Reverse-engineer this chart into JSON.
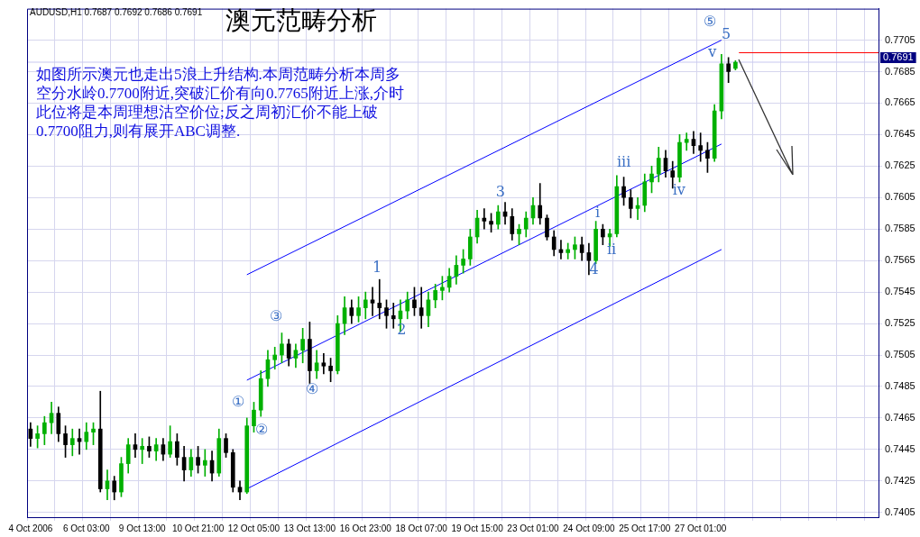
{
  "chart_data": {
    "type": "candlestick",
    "title": "澳元范畴分析",
    "subtitle": "AUDUSD,H1 0.7687 0.7692 0.7686 0.7691",
    "categories": [
      "4 Oct 2006",
      null,
      null,
      null,
      null,
      null,
      null,
      null,
      "6 Oct 03:00",
      null,
      null,
      null,
      null,
      null,
      null,
      null,
      "9 Oct 13:00",
      null,
      null,
      null,
      null,
      null,
      null,
      null,
      "10 Oct 21:00",
      null,
      null,
      null,
      null,
      null,
      null,
      null,
      "12 Oct 05:00",
      null,
      null,
      null,
      null,
      null,
      null,
      null,
      "13 Oct 13:00",
      null,
      null,
      null,
      null,
      null,
      null,
      null,
      "16 Oct 23:00",
      null,
      null,
      null,
      null,
      null,
      null,
      null,
      "18 Oct 07:00",
      null,
      null,
      null,
      null,
      null,
      null,
      null,
      "19 Oct 15:00",
      null,
      null,
      null,
      null,
      null,
      null,
      null,
      "23 Oct 01:00",
      null,
      null,
      null,
      null,
      null,
      null,
      null,
      "24 Oct 09:00",
      null,
      null,
      null,
      null,
      null,
      null,
      null,
      "25 Oct 17:00",
      null,
      null,
      null,
      null,
      null,
      null,
      null,
      "27 Oct 01:00",
      null,
      null,
      null,
      null,
      null,
      null,
      null,
      null,
      null,
      null,
      null,
      null,
      null,
      null,
      null,
      null,
      null,
      null,
      null,
      null,
      null,
      null,
      null,
      null,
      null
    ],
    "colors": [
      "#000000",
      "#00b000",
      "#00b000",
      "#00b000",
      "#000000",
      "#000000",
      "#00b000",
      "#000000",
      "#00b000",
      "#00b000",
      "#000000",
      "#00b000",
      "#000000",
      "#00b000",
      "#00b000",
      "#000000",
      "#00b000",
      "#000000",
      "#00b000",
      "#000000",
      "#00b000",
      "#000000",
      "#000000",
      "#00b000",
      "#000000",
      "#00b000",
      "#000000",
      "#00b000",
      "#000000",
      "#000000",
      "#000000",
      "#00b000",
      "#00b000",
      "#00b000",
      "#00b000",
      "#00b000",
      "#00b000",
      "#000000",
      "#00b000",
      "#00b000",
      "#000000",
      "#00b000",
      "#000000",
      "#000000",
      "#00b000",
      "#00b000",
      "#000000",
      "#00b000",
      "#00b000",
      "#000000",
      "#000000",
      "#000000",
      "#000000",
      "#00b000",
      "#00b000",
      "#000000",
      "#000000",
      "#00b000",
      "#00b000",
      "#00b000",
      "#00b000",
      "#00b000",
      "#00b000",
      "#00b000",
      "#00b000",
      "#000000",
      "#000000",
      "#00b000",
      "#000000",
      "#000000",
      "#00b000",
      "#00b000",
      "#00b000",
      "#000000",
      "#000000",
      "#000000",
      "#000000",
      "#00b000",
      "#00b000",
      "#000000",
      "#000000",
      "#00b000",
      "#000000",
      "#00b000",
      "#00b000",
      "#000000",
      "#000000",
      "#00b000",
      "#00b000",
      "#00b000",
      "#00b000",
      "#000000",
      "#000000",
      "#00b000",
      "#00b000",
      "#000000",
      "#000000",
      "#000000",
      "#00b000",
      "#00b000",
      "#000000",
      "#00b000",
      null,
      null,
      null,
      null,
      null,
      null,
      null,
      null,
      null,
      null,
      null,
      null,
      null,
      null,
      null,
      null,
      null,
      null,
      null,
      null
    ],
    "ohlc": [
      [
        0.7458,
        0.7462,
        0.7447,
        0.7452
      ],
      [
        0.7452,
        0.746,
        0.7446,
        0.7455
      ],
      [
        0.7455,
        0.7466,
        0.7448,
        0.7462
      ],
      [
        0.7462,
        0.7475,
        0.7455,
        0.7468
      ],
      [
        0.7468,
        0.7472,
        0.745,
        0.7455
      ],
      [
        0.7455,
        0.746,
        0.744,
        0.7448
      ],
      [
        0.7448,
        0.7458,
        0.7441,
        0.7452
      ],
      [
        0.7452,
        0.7458,
        0.7442,
        0.745
      ],
      [
        0.745,
        0.7462,
        0.7445,
        0.7456
      ],
      [
        0.7456,
        0.7462,
        0.7448,
        0.7458
      ],
      [
        0.7458,
        0.7482,
        0.7418,
        0.742
      ],
      [
        0.742,
        0.7432,
        0.7413,
        0.7425
      ],
      [
        0.7425,
        0.7428,
        0.7413,
        0.7418
      ],
      [
        0.7418,
        0.744,
        0.7415,
        0.7436
      ],
      [
        0.7436,
        0.7452,
        0.743,
        0.7448
      ],
      [
        0.7448,
        0.7455,
        0.744,
        0.7445
      ],
      [
        0.7445,
        0.7452,
        0.7436,
        0.7447
      ],
      [
        0.7447,
        0.7453,
        0.744,
        0.7444
      ],
      [
        0.7444,
        0.7452,
        0.7438,
        0.7448
      ],
      [
        0.7448,
        0.7452,
        0.7438,
        0.7442
      ],
      [
        0.7442,
        0.746,
        0.744,
        0.745
      ],
      [
        0.745,
        0.7455,
        0.7435,
        0.744
      ],
      [
        0.744,
        0.7447,
        0.7425,
        0.7432
      ],
      [
        0.7432,
        0.7445,
        0.7428,
        0.744
      ],
      [
        0.744,
        0.7447,
        0.743,
        0.7435
      ],
      [
        0.7435,
        0.7445,
        0.7428,
        0.7438
      ],
      [
        0.7438,
        0.7444,
        0.7425,
        0.743
      ],
      [
        0.743,
        0.7458,
        0.7428,
        0.7452
      ],
      [
        0.7452,
        0.7455,
        0.744,
        0.7443
      ],
      [
        0.7443,
        0.7445,
        0.7418,
        0.7421
      ],
      [
        0.7421,
        0.7425,
        0.7413,
        0.7418
      ],
      [
        0.7418,
        0.7465,
        0.7417,
        0.746
      ],
      [
        0.746,
        0.7475,
        0.7456,
        0.747
      ],
      [
        0.747,
        0.7495,
        0.7466,
        0.749
      ],
      [
        0.749,
        0.7508,
        0.7485,
        0.7502
      ],
      [
        0.7502,
        0.751,
        0.7496,
        0.7505
      ],
      [
        0.7505,
        0.7519,
        0.75,
        0.7512
      ],
      [
        0.7512,
        0.7515,
        0.7498,
        0.7503
      ],
      [
        0.7503,
        0.7512,
        0.7497,
        0.7508
      ],
      [
        0.7508,
        0.7522,
        0.75,
        0.7515
      ],
      [
        0.7515,
        0.7526,
        0.7487,
        0.7495
      ],
      [
        0.7495,
        0.7508,
        0.749,
        0.75
      ],
      [
        0.75,
        0.7506,
        0.7493,
        0.7498
      ],
      [
        0.7498,
        0.7503,
        0.7488,
        0.7495
      ],
      [
        0.7495,
        0.753,
        0.7493,
        0.7525
      ],
      [
        0.7525,
        0.7542,
        0.7518,
        0.7535
      ],
      [
        0.7535,
        0.754,
        0.7525,
        0.753
      ],
      [
        0.753,
        0.7542,
        0.7526,
        0.7535
      ],
      [
        0.7535,
        0.7545,
        0.7528,
        0.754
      ],
      [
        0.754,
        0.7548,
        0.753,
        0.7538
      ],
      [
        0.7538,
        0.7553,
        0.7528,
        0.7535
      ],
      [
        0.7535,
        0.754,
        0.7522,
        0.753
      ],
      [
        0.753,
        0.7538,
        0.7522,
        0.7528
      ],
      [
        0.7528,
        0.754,
        0.752,
        0.7533
      ],
      [
        0.7533,
        0.7545,
        0.7528,
        0.754
      ],
      [
        0.754,
        0.7548,
        0.753,
        0.7535
      ],
      [
        0.7535,
        0.7548,
        0.7522,
        0.753
      ],
      [
        0.753,
        0.7545,
        0.7523,
        0.754
      ],
      [
        0.754,
        0.755,
        0.7535,
        0.7546
      ],
      [
        0.7546,
        0.7555,
        0.754,
        0.7548
      ],
      [
        0.7548,
        0.756,
        0.7545,
        0.7555
      ],
      [
        0.7555,
        0.7568,
        0.755,
        0.7562
      ],
      [
        0.7562,
        0.7572,
        0.7557,
        0.7566
      ],
      [
        0.7566,
        0.7585,
        0.7562,
        0.758
      ],
      [
        0.758,
        0.7597,
        0.7576,
        0.7592
      ],
      [
        0.7592,
        0.7598,
        0.7585,
        0.759
      ],
      [
        0.759,
        0.7595,
        0.7583,
        0.7588
      ],
      [
        0.7588,
        0.76,
        0.7585,
        0.7596
      ],
      [
        0.7596,
        0.7602,
        0.7588,
        0.7593
      ],
      [
        0.7593,
        0.7598,
        0.7578,
        0.7582
      ],
      [
        0.7582,
        0.7588,
        0.7575,
        0.7585
      ],
      [
        0.7585,
        0.7596,
        0.758,
        0.7592
      ],
      [
        0.7592,
        0.7605,
        0.7588,
        0.76
      ],
      [
        0.76,
        0.7614,
        0.7588,
        0.7592
      ],
      [
        0.7592,
        0.7594,
        0.7578,
        0.758
      ],
      [
        0.758,
        0.7584,
        0.7568,
        0.7572
      ],
      [
        0.7572,
        0.7578,
        0.7566,
        0.757
      ],
      [
        0.757,
        0.7576,
        0.7566,
        0.7572
      ],
      [
        0.7572,
        0.758,
        0.7566,
        0.7575
      ],
      [
        0.7575,
        0.758,
        0.7565,
        0.757
      ],
      [
        0.757,
        0.7576,
        0.7556,
        0.7565
      ],
      [
        0.7565,
        0.759,
        0.7563,
        0.7585
      ],
      [
        0.7585,
        0.7588,
        0.7575,
        0.758
      ],
      [
        0.758,
        0.7585,
        0.7574,
        0.7582
      ],
      [
        0.7582,
        0.7619,
        0.758,
        0.7612
      ],
      [
        0.7612,
        0.7618,
        0.76,
        0.7605
      ],
      [
        0.7605,
        0.761,
        0.7592,
        0.7598
      ],
      [
        0.7598,
        0.7605,
        0.7591,
        0.76
      ],
      [
        0.76,
        0.762,
        0.7596,
        0.7615
      ],
      [
        0.7615,
        0.7625,
        0.7608,
        0.762
      ],
      [
        0.762,
        0.7637,
        0.7615,
        0.763
      ],
      [
        0.763,
        0.7635,
        0.7618,
        0.7622
      ],
      [
        0.7622,
        0.7628,
        0.7611,
        0.7618
      ],
      [
        0.7618,
        0.7645,
        0.7615,
        0.764
      ],
      [
        0.764,
        0.7646,
        0.7635,
        0.7642
      ],
      [
        0.7642,
        0.7647,
        0.7633,
        0.7638
      ],
      [
        0.7638,
        0.7646,
        0.7628,
        0.7635
      ],
      [
        0.7635,
        0.764,
        0.7621,
        0.763
      ],
      [
        0.763,
        0.7664,
        0.7628,
        0.766
      ],
      [
        0.766,
        0.7696,
        0.7655,
        0.769
      ],
      [
        0.769,
        0.7694,
        0.7678,
        0.7685
      ],
      [
        0.7687,
        0.7692,
        0.7686,
        0.7691
      ],
      null,
      null,
      null,
      null,
      null,
      null,
      null,
      null,
      null,
      null,
      null,
      null,
      null,
      null,
      null,
      null,
      null,
      null,
      null,
      null
    ],
    "series": [
      {
        "type": "line",
        "color": "#0000ff",
        "values": [
          null,
          null,
          null,
          null,
          null,
          null,
          null,
          null,
          null,
          null,
          null,
          null,
          null,
          null,
          null,
          null,
          null,
          null,
          null,
          null,
          null,
          null,
          null,
          null,
          null,
          null,
          null,
          null,
          null,
          null,
          null,
          0.7556,
          null,
          null,
          null,
          null,
          null,
          null,
          null,
          null,
          null,
          null,
          null,
          null,
          null,
          null,
          null,
          null,
          null,
          null,
          null,
          null,
          null,
          null,
          null,
          null,
          null,
          null,
          null,
          null,
          null,
          null,
          null,
          null,
          null,
          null,
          null,
          null,
          null,
          null,
          null,
          null,
          null,
          null,
          null,
          null,
          null,
          null,
          null,
          null,
          null,
          null,
          null,
          null,
          null,
          null,
          null,
          null,
          null,
          null,
          null,
          null,
          null,
          null,
          null,
          null,
          null,
          null,
          null,
          0.7705,
          null,
          null,
          null,
          null,
          null,
          null,
          null,
          null,
          null,
          null,
          null,
          null,
          null,
          null,
          null,
          null,
          null,
          null,
          null,
          null,
          null,
          null
        ]
      },
      {
        "type": "line",
        "color": "#0000ff",
        "values": [
          null,
          null,
          null,
          null,
          null,
          null,
          null,
          null,
          null,
          null,
          null,
          null,
          null,
          null,
          null,
          null,
          null,
          null,
          null,
          null,
          null,
          null,
          null,
          null,
          null,
          null,
          null,
          null,
          null,
          null,
          null,
          0.7489,
          null,
          null,
          null,
          null,
          null,
          null,
          null,
          null,
          null,
          null,
          null,
          null,
          null,
          null,
          null,
          null,
          null,
          null,
          null,
          null,
          null,
          null,
          null,
          null,
          null,
          null,
          null,
          null,
          null,
          null,
          null,
          null,
          null,
          null,
          null,
          null,
          null,
          null,
          null,
          null,
          null,
          null,
          null,
          null,
          null,
          null,
          null,
          null,
          null,
          null,
          null,
          null,
          null,
          null,
          null,
          null,
          null,
          null,
          null,
          null,
          null,
          null,
          null,
          null,
          null,
          null,
          null,
          0.7639,
          null,
          null,
          null,
          null,
          null,
          null,
          null,
          null,
          null,
          null,
          null,
          null,
          null,
          null,
          null,
          null,
          null,
          null,
          null,
          null,
          null,
          null
        ]
      },
      {
        "type": "line",
        "color": "#0000ff",
        "values": [
          null,
          null,
          null,
          null,
          null,
          null,
          null,
          null,
          null,
          null,
          null,
          null,
          null,
          null,
          null,
          null,
          null,
          null,
          null,
          null,
          null,
          null,
          null,
          null,
          null,
          null,
          null,
          null,
          null,
          null,
          null,
          0.742,
          null,
          null,
          null,
          null,
          null,
          null,
          null,
          null,
          null,
          null,
          null,
          null,
          null,
          null,
          null,
          null,
          null,
          null,
          null,
          null,
          null,
          null,
          null,
          null,
          null,
          null,
          null,
          null,
          null,
          null,
          null,
          null,
          null,
          null,
          null,
          null,
          null,
          null,
          null,
          null,
          null,
          null,
          null,
          null,
          null,
          null,
          null,
          null,
          null,
          null,
          null,
          null,
          null,
          null,
          null,
          null,
          null,
          null,
          null,
          null,
          null,
          null,
          null,
          null,
          null,
          null,
          null,
          0.7572,
          null,
          null,
          null,
          null,
          null,
          null,
          null,
          null,
          null,
          null,
          null,
          null,
          null,
          null,
          null,
          null,
          null,
          null,
          null,
          null,
          null,
          null
        ]
      }
    ],
    "ylim": [
      0.7402,
      0.7725
    ],
    "yticks": [
      0.7405,
      0.7425,
      0.7445,
      0.7465,
      0.7485,
      0.7505,
      0.7525,
      0.7545,
      0.7565,
      0.7585,
      0.7605,
      0.7625,
      0.7645,
      0.7665,
      0.7685,
      0.7705
    ],
    "grid": true,
    "ref_lines": [
      {
        "axis": "y",
        "value": 0.7697,
        "color": "#ff0000"
      },
      {
        "axis": "y",
        "value": 0.7691,
        "label": "0.7691",
        "color": "#c8c8f0"
      }
    ],
    "annotations": [
      "如图所示澳元也走出5浪上升结构.本周范畴分析本周多空分水岭0.7700附近,突破汇价有向0.7765附近上涨,介时此位将是本周理想沽空价位;反之周初汇价不能上破0.7700阻力,则有展开ABC调整.",
      "①",
      "②",
      "③",
      "④",
      "1",
      "2",
      "3",
      "4",
      "i",
      "ii",
      "iii",
      "iv",
      "v",
      "5",
      "⑤"
    ],
    "legend": false
  }
}
